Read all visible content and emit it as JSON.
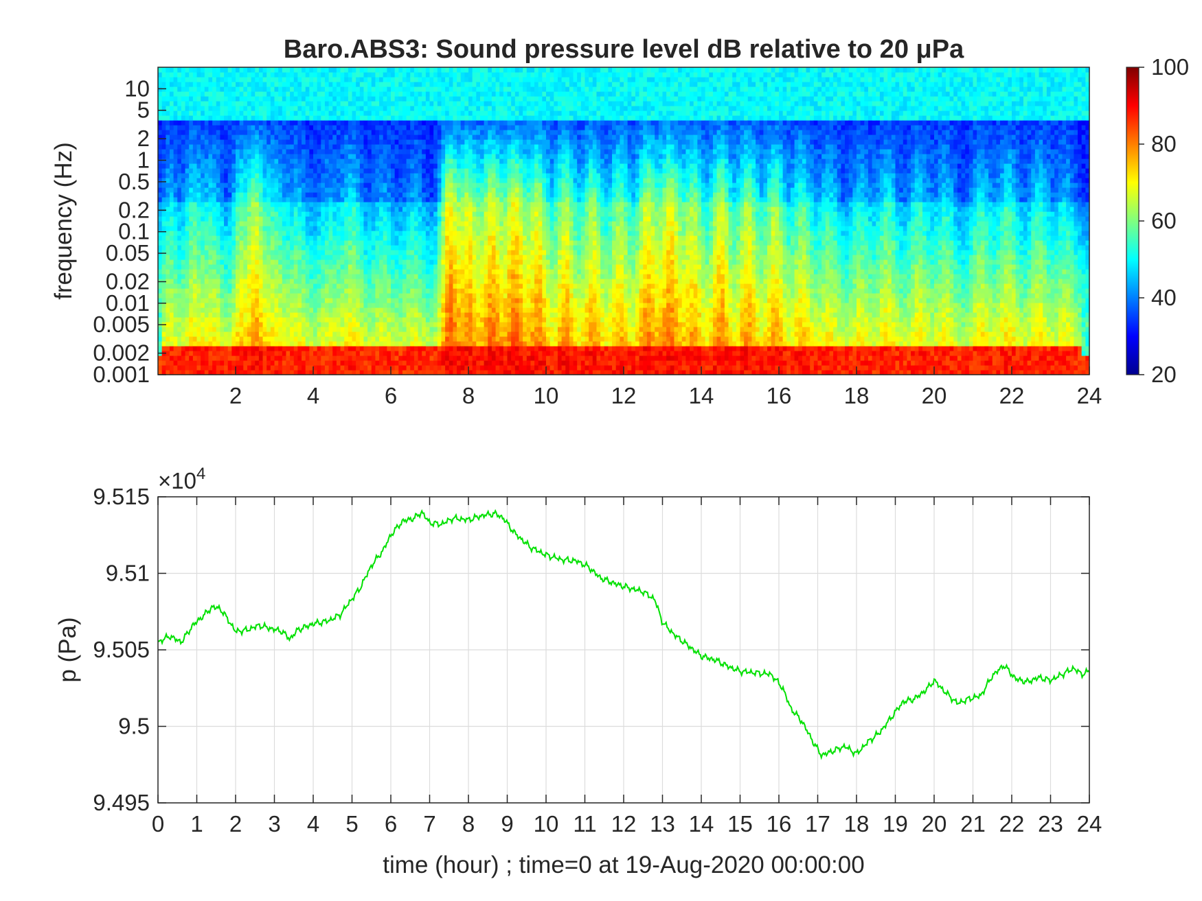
{
  "colors": {
    "line": "#00e000",
    "grid": "#dcdcdc",
    "axis": "#262626"
  },
  "chart_data": [
    {
      "type": "heatmap",
      "title": "Baro.ABS3: Sound pressure level dB relative to 20 μPa",
      "xlabel": "",
      "ylabel": "frequency (Hz)",
      "xlim": [
        0,
        24
      ],
      "yscale": "log",
      "ylim": [
        0.001,
        20
      ],
      "x_ticks": [
        2,
        4,
        6,
        8,
        10,
        12,
        14,
        16,
        18,
        20,
        22,
        24
      ],
      "y_ticks": [
        0.001,
        0.002,
        0.005,
        0.01,
        0.02,
        0.05,
        0.1,
        0.2,
        0.5,
        1,
        2,
        5,
        10
      ],
      "y_tick_labels": [
        "0.001",
        "0.002",
        "0.005",
        "0.01",
        "0.02",
        "0.05",
        "0.1",
        "0.2",
        "0.5",
        "1",
        "2",
        "5",
        "10"
      ],
      "colorbar": {
        "colormap": "jet",
        "range": [
          20,
          100
        ],
        "ticks": [
          20,
          40,
          60,
          80,
          100
        ]
      },
      "activity_bursts": [
        {
          "t": 0.3,
          "amp": 0.35,
          "w": 0.25
        },
        {
          "t": 0.9,
          "amp": 0.45,
          "w": 0.25
        },
        {
          "t": 1.4,
          "amp": 0.4,
          "w": 0.3
        },
        {
          "t": 2.1,
          "amp": 0.5,
          "w": 0.2
        },
        {
          "t": 2.5,
          "amp": 0.75,
          "w": 0.25
        },
        {
          "t": 3.0,
          "amp": 0.45,
          "w": 0.3
        },
        {
          "t": 3.6,
          "amp": 0.35,
          "w": 0.3
        },
        {
          "t": 4.4,
          "amp": 0.3,
          "w": 0.3
        },
        {
          "t": 5.0,
          "amp": 0.45,
          "w": 0.3
        },
        {
          "t": 5.8,
          "amp": 0.3,
          "w": 0.3
        },
        {
          "t": 6.6,
          "amp": 0.3,
          "w": 0.3
        },
        {
          "t": 7.5,
          "amp": 0.95,
          "w": 0.25
        },
        {
          "t": 8.0,
          "amp": 0.85,
          "w": 0.3
        },
        {
          "t": 8.6,
          "amp": 0.9,
          "w": 0.3
        },
        {
          "t": 9.2,
          "amp": 0.95,
          "w": 0.3
        },
        {
          "t": 9.8,
          "amp": 0.85,
          "w": 0.3
        },
        {
          "t": 10.5,
          "amp": 0.8,
          "w": 0.3
        },
        {
          "t": 11.2,
          "amp": 0.75,
          "w": 0.3
        },
        {
          "t": 11.9,
          "amp": 0.7,
          "w": 0.3
        },
        {
          "t": 12.6,
          "amp": 0.85,
          "w": 0.3
        },
        {
          "t": 13.2,
          "amp": 0.9,
          "w": 0.3
        },
        {
          "t": 13.8,
          "amp": 0.75,
          "w": 0.3
        },
        {
          "t": 14.5,
          "amp": 0.85,
          "w": 0.3
        },
        {
          "t": 15.2,
          "amp": 0.8,
          "w": 0.3
        },
        {
          "t": 15.9,
          "amp": 0.75,
          "w": 0.3
        },
        {
          "t": 16.6,
          "amp": 0.6,
          "w": 0.3
        },
        {
          "t": 17.3,
          "amp": 0.45,
          "w": 0.3
        },
        {
          "t": 18.1,
          "amp": 0.4,
          "w": 0.3
        },
        {
          "t": 18.8,
          "amp": 0.5,
          "w": 0.3
        },
        {
          "t": 19.6,
          "amp": 0.45,
          "w": 0.3
        },
        {
          "t": 20.3,
          "amp": 0.4,
          "w": 0.3
        },
        {
          "t": 21.2,
          "amp": 0.45,
          "w": 0.3
        },
        {
          "t": 21.9,
          "amp": 0.5,
          "w": 0.3
        },
        {
          "t": 22.7,
          "amp": 0.45,
          "w": 0.3
        },
        {
          "t": 23.4,
          "amp": 0.35,
          "w": 0.3
        }
      ]
    },
    {
      "type": "line",
      "title": "",
      "xlabel": "time (hour) ; time=0 at 19-Aug-2020 00:00:00",
      "ylabel": "p (Pa)",
      "y_exponent_label": "×10",
      "y_exponent": "4",
      "xlim": [
        0,
        24
      ],
      "ylim": [
        9.495,
        9.515
      ],
      "x_ticks": [
        0,
        1,
        2,
        3,
        4,
        5,
        6,
        7,
        8,
        9,
        10,
        11,
        12,
        13,
        14,
        15,
        16,
        17,
        18,
        19,
        20,
        21,
        22,
        23,
        24
      ],
      "y_ticks": [
        9.495,
        9.5,
        9.505,
        9.51,
        9.515
      ],
      "y_tick_labels": [
        "9.495",
        "9.5",
        "9.505",
        "9.51",
        "9.515"
      ],
      "grid": true,
      "series": [
        {
          "x": [
            0,
            0.3,
            0.6,
            0.9,
            1.2,
            1.4,
            1.6,
            1.8,
            2.0,
            2.3,
            2.6,
            2.9,
            3.2,
            3.4,
            3.6,
            4.0,
            4.4,
            4.7,
            4.9,
            5.2,
            5.5,
            5.8,
            6.0,
            6.3,
            6.6,
            6.8,
            7.0,
            7.3,
            7.6,
            8.0,
            8.4,
            8.7,
            8.9,
            9.2,
            9.6,
            10.0,
            10.4,
            10.8,
            11.1,
            11.4,
            11.8,
            12.2,
            12.5,
            12.8,
            13.0,
            13.3,
            13.7,
            14.0,
            14.4,
            14.7,
            15.0,
            15.4,
            15.8,
            16.1,
            16.3,
            16.6,
            16.9,
            17.1,
            17.4,
            17.7,
            18.0,
            18.3,
            18.6,
            18.9,
            19.2,
            19.5,
            19.8,
            20.0,
            20.3,
            20.6,
            20.9,
            21.2,
            21.5,
            21.8,
            22.1,
            22.4,
            22.7,
            23.0,
            23.3,
            23.6,
            23.8,
            24.0
          ],
          "y": [
            9.5055,
            9.5059,
            9.5055,
            9.5066,
            9.5073,
            9.5078,
            9.5077,
            9.507,
            9.5062,
            9.5063,
            9.5066,
            9.5064,
            9.5062,
            9.5057,
            9.5063,
            9.5067,
            9.5069,
            9.5073,
            9.508,
            9.509,
            9.5105,
            9.5115,
            9.5125,
            9.5134,
            9.5136,
            9.514,
            9.5133,
            9.5132,
            9.5136,
            9.5135,
            9.5138,
            9.5139,
            9.5136,
            9.5126,
            9.5117,
            9.5112,
            9.5109,
            9.5108,
            9.5104,
            9.5097,
            9.5093,
            9.509,
            9.5088,
            9.5083,
            9.5068,
            9.506,
            9.5052,
            9.5046,
            9.5043,
            9.5039,
            9.5036,
            9.5035,
            9.5034,
            9.5025,
            9.5012,
            9.5003,
            9.4989,
            9.4981,
            9.4984,
            9.4987,
            9.4982,
            9.499,
            9.4996,
            9.5006,
            9.5016,
            9.5018,
            9.5024,
            9.503,
            9.5022,
            9.5015,
            9.5018,
            9.502,
            9.5033,
            9.504,
            9.5031,
            9.5029,
            9.5032,
            9.503,
            9.5034,
            9.5038,
            9.5034,
            9.5036
          ]
        }
      ]
    }
  ]
}
